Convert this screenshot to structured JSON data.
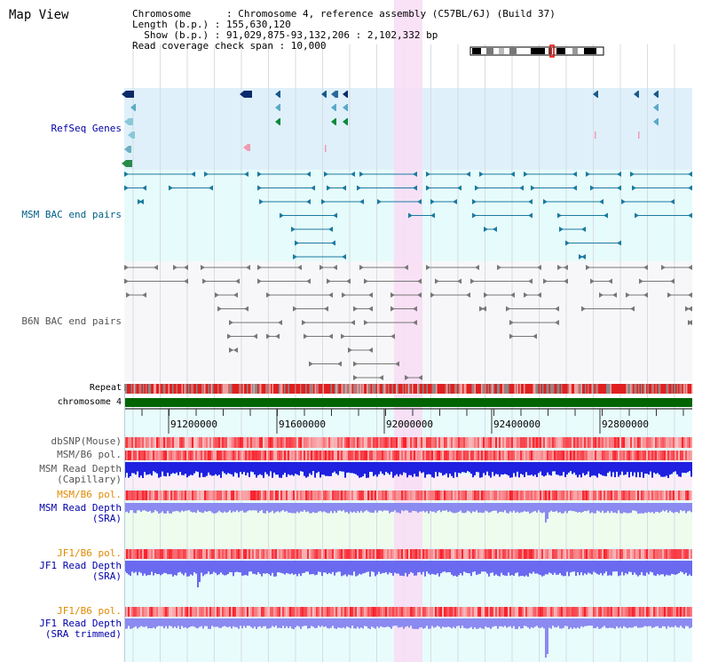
{
  "page": {
    "title": "Map View"
  },
  "info": {
    "line1": "Chromosome      : Chromosome 4, reference assembly (C57BL/6J) (Build 37)",
    "line2": "Length (b.p.) : 155,630,120",
    "line3": "  Show (b.p.) : 91,029,875-93,132,206 : 2,102,332 bp",
    "line4": "Read coverage check span : 10,000"
  },
  "tracks": {
    "refseq": "RefSeq Genes",
    "msm_bac": "MSM BAC end pairs",
    "b6n_bac": "B6N BAC end pairs",
    "repeat": "Repeat",
    "chromosome": "chromosome 4",
    "dbsnp": "dbSNP(Mouse)",
    "msm_b6_pol_1": "MSM/B6 pol.",
    "msm_depth_cap": "MSM Read Depth\n(Capillary)",
    "msm_b6_pol_2": "MSM/B6 pol.",
    "msm_depth_sra": "MSM Read Depth\n(SRA)",
    "jf1_b6_pol_1": "JF1/B6 pol.",
    "jf1_depth_sra": "JF1 Read Depth\n(SRA)",
    "jf1_b6_pol_2": "JF1/B6 pol.",
    "jf1_depth_trim": "JF1 Read Depth\n(SRA trimmed)"
  },
  "axis": {
    "ticks": [
      "91200000",
      "91600000",
      "92000000",
      "92400000",
      "92800000"
    ]
  },
  "colors": {
    "refseq_bg": "#dff0fb",
    "msm_bac_bg": "#e6fbfb",
    "b6n_bg": "#f7f7f9",
    "data_bg": "#e8fcfc",
    "highlight": "#f8dcf4",
    "chromosome": "#006400",
    "label_blue": "#0000aa",
    "label_teal": "#005f87",
    "label_orange": "#e08a00",
    "label_gray": "#555555"
  }
}
